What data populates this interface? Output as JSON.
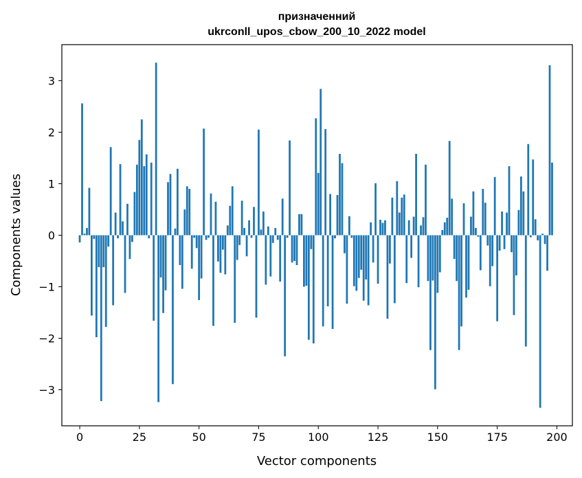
{
  "chart_data": {
    "type": "bar",
    "title_lines": [
      "призначенний",
      "ukrconll_upos_cbow_200_10_2022 model"
    ],
    "xlabel": "Vector components",
    "ylabel": "Components values",
    "xlim": [
      -7.5,
      206.5
    ],
    "ylim": [
      -3.7,
      3.7
    ],
    "xticks": [
      0,
      25,
      50,
      75,
      100,
      125,
      150,
      175,
      200
    ],
    "yticks": [
      -3,
      -2,
      -1,
      0,
      1,
      2,
      3
    ],
    "ytick_labels": [
      "−3",
      "−2",
      "−1",
      "0",
      "1",
      "2",
      "3"
    ],
    "bar_color": "#1f77b4",
    "bar_width": 0.8,
    "values": [
      -0.14,
      2.56,
      0.03,
      0.14,
      0.92,
      -1.56,
      -0.07,
      -1.98,
      -0.62,
      -3.22,
      -0.62,
      -1.78,
      -0.22,
      1.71,
      -1.36,
      0.44,
      -0.06,
      1.38,
      0.27,
      -1.12,
      0.61,
      -0.46,
      -0.13,
      0.84,
      1.37,
      1.85,
      2.25,
      1.34,
      1.57,
      -0.06,
      1.41,
      -1.66,
      3.35,
      -3.24,
      -0.82,
      -1.51,
      -1.07,
      1.03,
      1.19,
      -2.89,
      0.13,
      1.29,
      -0.58,
      -1.04,
      0.5,
      0.95,
      0.9,
      -0.65,
      -0.05,
      -0.25,
      -1.26,
      -0.84,
      2.07,
      -0.09,
      -0.05,
      0.81,
      -1.76,
      0.65,
      -0.51,
      -0.73,
      -0.28,
      -0.76,
      0.19,
      0.57,
      0.95,
      -1.7,
      -0.48,
      -0.19,
      0.67,
      0.14,
      -0.41,
      0.29,
      -0.05,
      0.55,
      -1.6,
      2.05,
      0.11,
      0.46,
      -0.96,
      0.17,
      -0.8,
      -0.15,
      0.14,
      -0.09,
      -0.9,
      0.71,
      -2.35,
      -0.05,
      1.84,
      -0.53,
      -0.5,
      -0.58,
      0.41,
      0.41,
      -1.0,
      -0.98,
      -2.03,
      -0.27,
      -2.1,
      2.27,
      1.21,
      2.84,
      -1.77,
      2.06,
      -1.38,
      0.8,
      -1.82,
      -0.06,
      0.78,
      1.58,
      1.4,
      -0.35,
      -1.33,
      0.37,
      -0.05,
      -0.99,
      -1.08,
      -0.83,
      -0.67,
      -1.27,
      -0.86,
      -1.36,
      0.25,
      -0.53,
      1.01,
      -0.94,
      0.3,
      0.24,
      0.29,
      -1.62,
      -0.55,
      0.73,
      -1.32,
      1.05,
      0.44,
      0.73,
      0.79,
      -0.93,
      0.29,
      -0.44,
      0.36,
      1.58,
      -1.01,
      0.19,
      0.35,
      1.37,
      -0.89,
      -2.23,
      -0.88,
      -2.99,
      -1.12,
      -0.72,
      0.1,
      0.25,
      0.34,
      1.83,
      0.71,
      -0.46,
      -0.89,
      -2.23,
      -1.77,
      0.62,
      -1.21,
      -1.06,
      0.36,
      0.85,
      0.14,
      -0.03,
      -0.68,
      0.9,
      0.63,
      -0.2,
      -0.99,
      -0.6,
      1.13,
      -1.67,
      -0.3,
      0.46,
      -0.27,
      0.44,
      1.34,
      -0.33,
      -1.55,
      -0.78,
      0.49,
      1.14,
      0.85,
      -2.16,
      1.77,
      -0.04,
      1.47,
      0.31,
      -0.1,
      -3.35,
      0.03,
      -0.17,
      -0.69,
      3.3,
      1.41
    ]
  }
}
